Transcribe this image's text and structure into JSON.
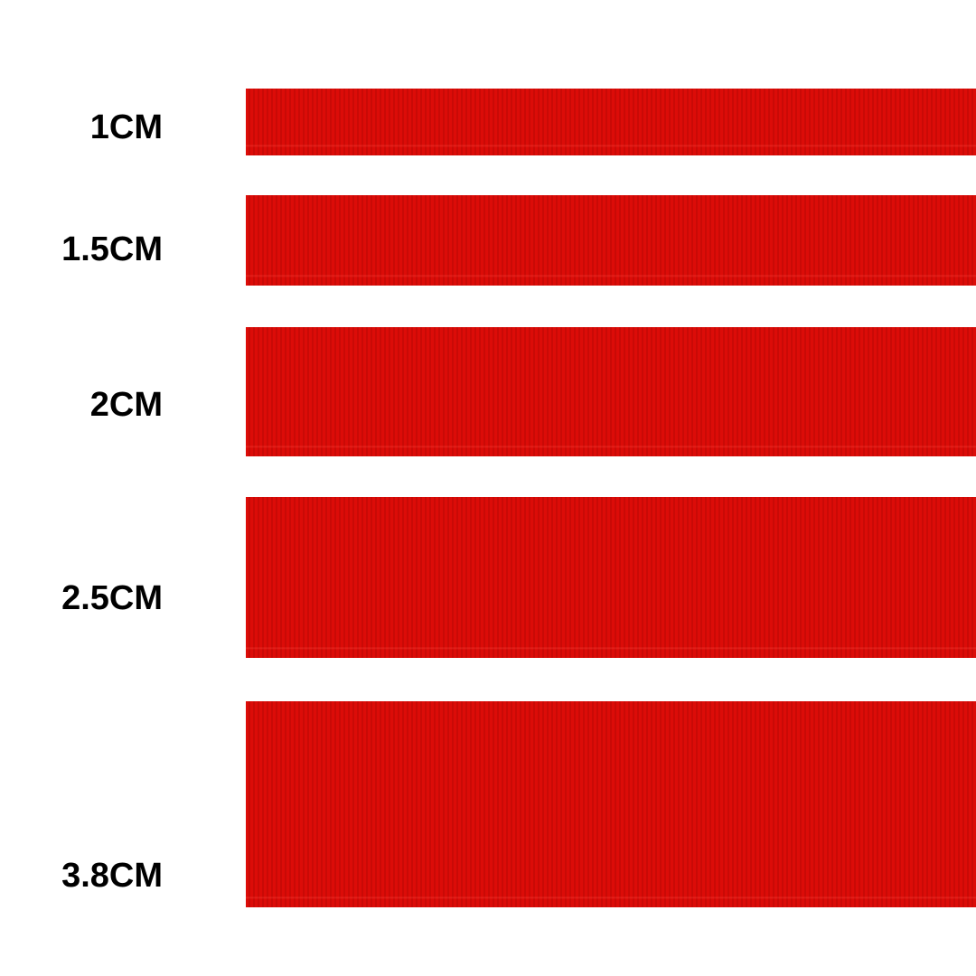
{
  "ribbon_color": "#dc0c08",
  "ribbons": [
    {
      "label": "1CM"
    },
    {
      "label": "1.5CM"
    },
    {
      "label": "2CM"
    },
    {
      "label": "2.5CM"
    },
    {
      "label": "3.8CM"
    }
  ]
}
